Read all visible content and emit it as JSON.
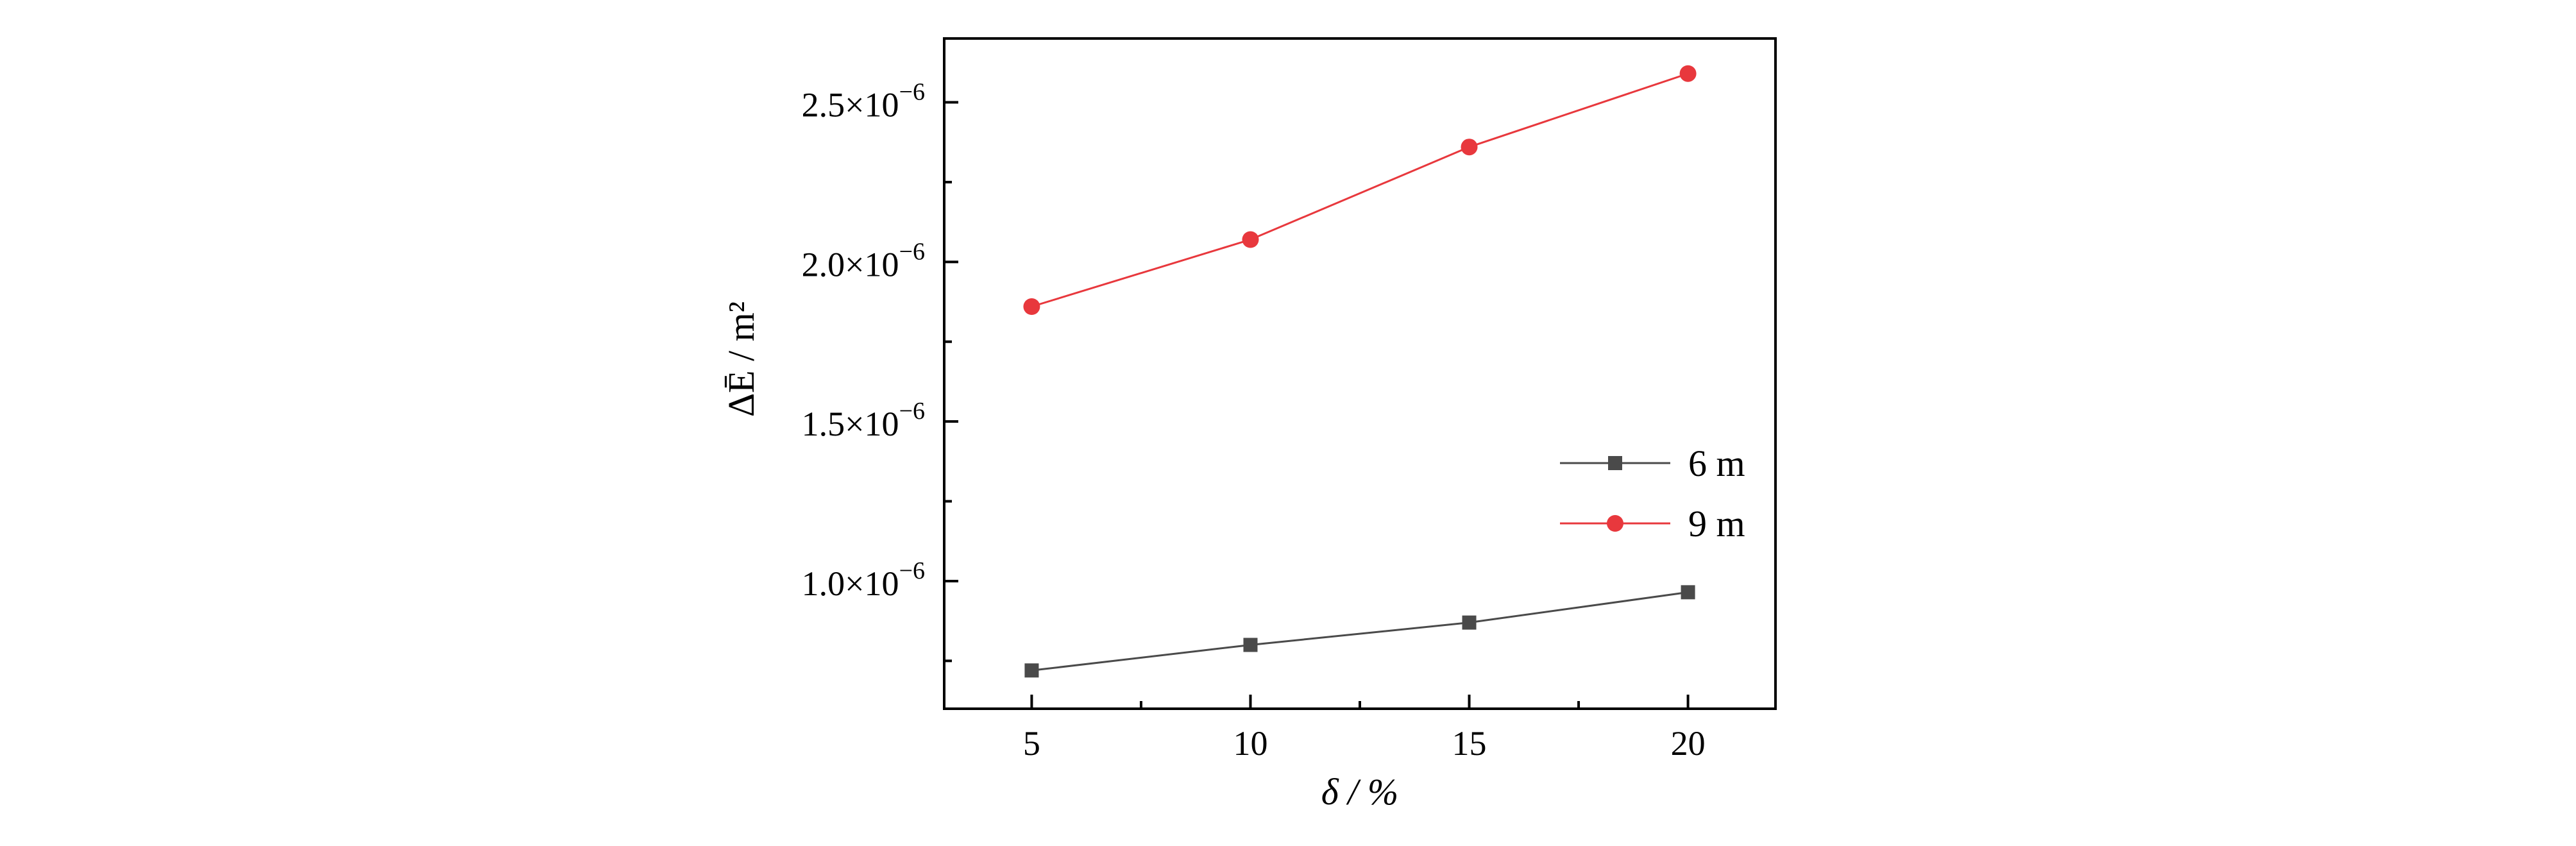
{
  "chart_data": {
    "type": "line",
    "x": [
      5,
      10,
      15,
      20
    ],
    "xlabel": "δ / %",
    "ylabel": "ΔĒ / m²",
    "xlim": [
      3,
      22
    ],
    "ylim": [
      6e-07,
      2.7e-06
    ],
    "x_ticks": [
      5,
      10,
      15,
      20
    ],
    "x_tick_labels": [
      "5",
      "10",
      "15",
      "20"
    ],
    "y_ticks": [
      1e-06,
      1.5e-06,
      2e-06,
      2.5e-06
    ],
    "y_tick_labels": [
      {
        "mantissa": "1.0",
        "times": "×10",
        "exponent": "−6"
      },
      {
        "mantissa": "1.5",
        "times": "×10",
        "exponent": "−6"
      },
      {
        "mantissa": "2.0",
        "times": "×10",
        "exponent": "−6"
      },
      {
        "mantissa": "2.5",
        "times": "×10",
        "exponent": "−6"
      }
    ],
    "grid": false,
    "legend_position": "right",
    "series": [
      {
        "name": "6 m",
        "values": [
          7.2e-07,
          8e-07,
          8.7e-07,
          9.65e-07
        ],
        "color": "#4a4a4a",
        "marker": "square"
      },
      {
        "name": "9 m",
        "values": [
          1.86e-06,
          2.07e-06,
          2.36e-06,
          2.59e-06
        ],
        "color": "#e8383d",
        "marker": "circle"
      }
    ]
  }
}
